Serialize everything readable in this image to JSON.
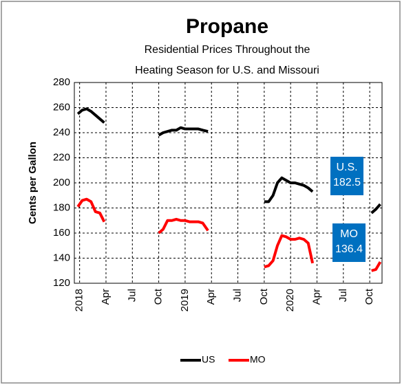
{
  "chart_data": {
    "type": "line",
    "title": "Propane",
    "subtitle": [
      "Residential Prices Throughout the",
      "Heating Season for U.S. and Missouri"
    ],
    "y_label": "Cents per Gallon",
    "x": [
      -0.2,
      0.3,
      0.8,
      1.3,
      1.8,
      2.3,
      2.8,
      3.5,
      9.0,
      9.5,
      10.0,
      10.5,
      11.0,
      11.5,
      12.0,
      12.5,
      13.0,
      13.5,
      14.0,
      14.6,
      16,
      21.0,
      21.5,
      22.0,
      22.5,
      23.0,
      23.5,
      24.0,
      24.5,
      25.0,
      25.5,
      26.0,
      26.5,
      28,
      33.2,
      33.7,
      34.2
    ],
    "series": [
      {
        "name": "US",
        "color": "#000000",
        "values": [
          255,
          258,
          259,
          257,
          254,
          251,
          248,
          null,
          238,
          240,
          241,
          242,
          242,
          244,
          243,
          243,
          243,
          243,
          242,
          241,
          null,
          185,
          185,
          190,
          200,
          204,
          202,
          200,
          200,
          199,
          198,
          196,
          193,
          null,
          176,
          179,
          183
        ]
      },
      {
        "name": "MO",
        "color": "#ff0000",
        "values": [
          181,
          186,
          187,
          185,
          177,
          176,
          169,
          null,
          160,
          163,
          170,
          170,
          171,
          170,
          170,
          169,
          169,
          169,
          168,
          162,
          null,
          133,
          134,
          138,
          150,
          158,
          157,
          155,
          155,
          156,
          155,
          152,
          136,
          null,
          130,
          131,
          137
        ]
      }
    ],
    "xlim": [
      -0.6,
      34.4
    ],
    "xticks": [
      {
        "value": 0,
        "label": "2018"
      },
      {
        "value": 3,
        "label": "Apr"
      },
      {
        "value": 6,
        "label": "Jul"
      },
      {
        "value": 9,
        "label": "Oct"
      },
      {
        "value": 12,
        "label": "2019"
      },
      {
        "value": 15,
        "label": "Apr"
      },
      {
        "value": 18,
        "label": "Jul"
      },
      {
        "value": 21,
        "label": "Oct"
      },
      {
        "value": 24,
        "label": "2020"
      },
      {
        "value": 27,
        "label": "Apr"
      },
      {
        "value": 30,
        "label": "Jul"
      },
      {
        "value": 33,
        "label": "Oct"
      }
    ],
    "ylim": [
      120,
      280
    ],
    "yticks": [
      120,
      140,
      160,
      180,
      200,
      220,
      240,
      260,
      280
    ],
    "grid": true,
    "annotations": [
      {
        "lines": [
          "U.S.",
          "182.5"
        ],
        "color": "#0070c0"
      },
      {
        "lines": [
          "MO",
          "136.4"
        ],
        "color": "#0070c0"
      }
    ],
    "legend": "bottom"
  }
}
